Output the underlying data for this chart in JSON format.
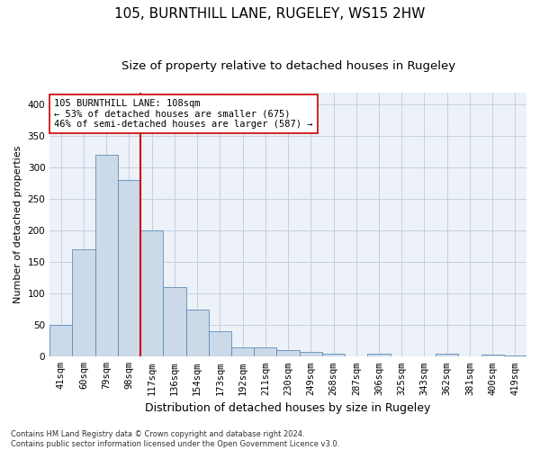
{
  "title_line1": "105, BURNTHILL LANE, RUGELEY, WS15 2HW",
  "title_line2": "Size of property relative to detached houses in Rugeley",
  "xlabel": "Distribution of detached houses by size in Rugeley",
  "ylabel": "Number of detached properties",
  "bar_color": "#ccd9e8",
  "bar_edge_color": "#5b8db8",
  "grid_color": "#c5cfe0",
  "background_color": "#edf1f8",
  "vline_color": "#cc0000",
  "categories": [
    "41sqm",
    "60sqm",
    "79sqm",
    "98sqm",
    "117sqm",
    "136sqm",
    "154sqm",
    "173sqm",
    "192sqm",
    "211sqm",
    "230sqm",
    "249sqm",
    "268sqm",
    "287sqm",
    "306sqm",
    "325sqm",
    "343sqm",
    "362sqm",
    "381sqm",
    "400sqm",
    "419sqm"
  ],
  "values": [
    50,
    170,
    320,
    280,
    200,
    110,
    75,
    40,
    15,
    15,
    10,
    7,
    5,
    0,
    5,
    0,
    0,
    5,
    0,
    3,
    2
  ],
  "ylim": [
    0,
    420
  ],
  "yticks": [
    0,
    50,
    100,
    150,
    200,
    250,
    300,
    350,
    400
  ],
  "annotation_text": "105 BURNTHILL LANE: 108sqm\n← 53% of detached houses are smaller (675)\n46% of semi-detached houses are larger (587) →",
  "footer_text": "Contains HM Land Registry data © Crown copyright and database right 2024.\nContains public sector information licensed under the Open Government Licence v3.0.",
  "title_fontsize": 11,
  "subtitle_fontsize": 9.5,
  "xlabel_fontsize": 9,
  "ylabel_fontsize": 8,
  "tick_fontsize": 7.5,
  "annot_fontsize": 7.5,
  "footer_fontsize": 6
}
